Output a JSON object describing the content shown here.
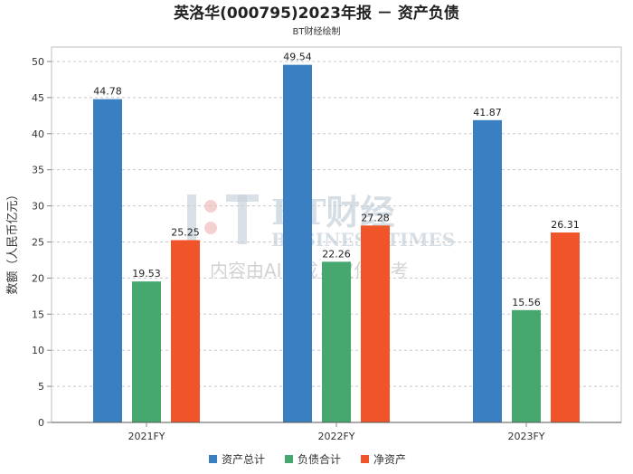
{
  "page": {
    "title": "英洛华(000795)2023年报 － 资产负债",
    "subtitle": "BT财经绘制"
  },
  "watermark": {
    "brand_cn": "BT财经",
    "brand_en": "BUSINESS TIMES",
    "note": "内容由AI生成，仅供参考"
  },
  "chart_data": {
    "type": "bar",
    "categories": [
      "2021FY",
      "2022FY",
      "2023FY"
    ],
    "series": [
      {
        "name": "资产总计",
        "color": "#3a7fc1",
        "values": [
          44.78,
          49.54,
          41.87
        ]
      },
      {
        "name": "负债合计",
        "color": "#46a86f",
        "values": [
          19.53,
          22.26,
          15.56
        ]
      },
      {
        "name": "净资产",
        "color": "#f0552a",
        "values": [
          25.25,
          27.28,
          26.31
        ]
      }
    ],
    "ylabel": "数额（人民币亿元）",
    "xlabel": "",
    "ylim": [
      0,
      52
    ],
    "yticks": [
      0,
      5,
      10,
      15,
      20,
      25,
      30,
      35,
      40,
      45,
      50
    ],
    "grid": true,
    "legend_position": "bottom"
  }
}
